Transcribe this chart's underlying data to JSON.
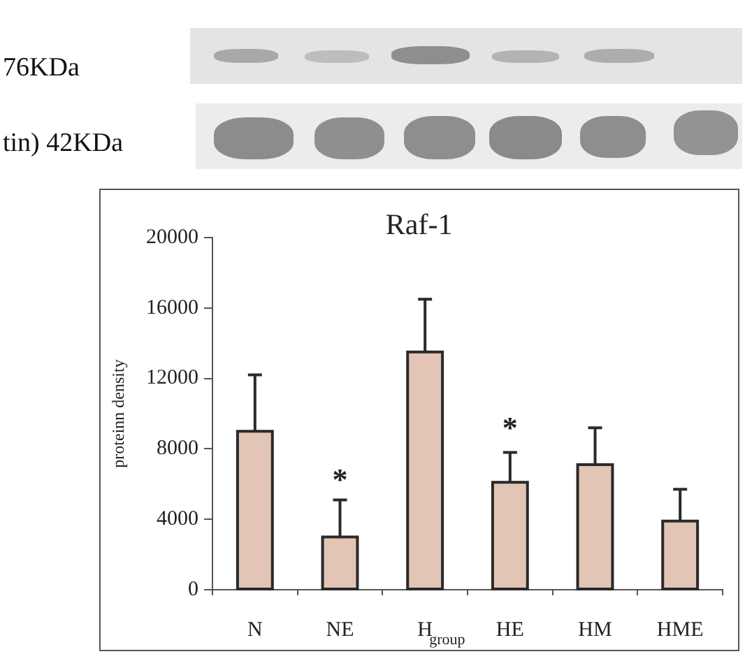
{
  "chart_data": {
    "type": "bar",
    "title": "Raf-1",
    "xlabel": "group",
    "ylabel": "proteinn density",
    "categories": [
      "N",
      "NE",
      "H",
      "HE",
      "HM",
      "HME"
    ],
    "values": [
      9000,
      3000,
      13500,
      6100,
      7100,
      3900
    ],
    "errors": [
      [
        9000,
        12200
      ],
      [
        3000,
        5100
      ],
      [
        13500,
        16500
      ],
      [
        6100,
        7800
      ],
      [
        7100,
        9200
      ],
      [
        3900,
        5700
      ]
    ],
    "color": "#e3c5b6",
    "ylim": [
      0,
      20000
    ],
    "yticks": [
      0,
      4000,
      8000,
      12000,
      16000,
      20000
    ],
    "grid": false,
    "legend": false,
    "annotations": [
      "76KDa",
      "tin) 42KDa",
      "*",
      "*"
    ]
  }
}
